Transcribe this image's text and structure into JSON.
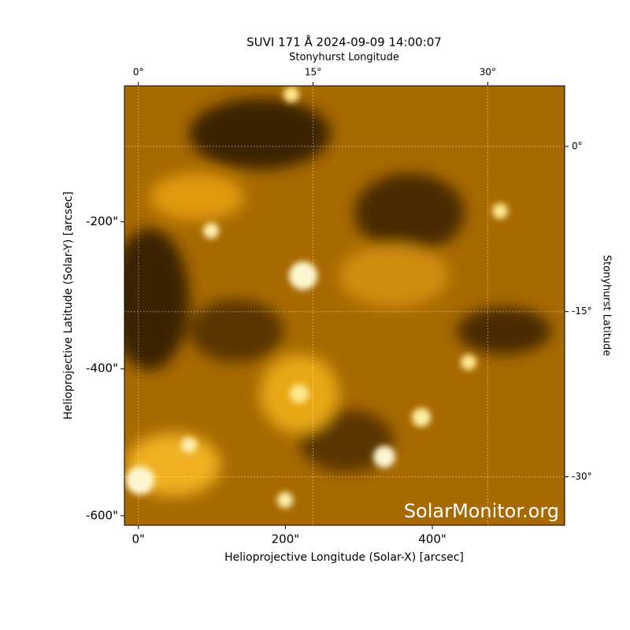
{
  "chart_data": {
    "type": "image",
    "title": "SUVI 171 Å 2024-09-09 14:00:07",
    "xlabel": "Helioprojective Longitude (Solar-X) [arcsec]",
    "ylabel": "Helioprojective Latitude (Solar-Y) [arcsec]",
    "x2label": "Stonyhurst Longitude",
    "y2label": "Stonyhurst Latitude",
    "watermark": "SolarMonitor.org",
    "xlim": [
      -19,
      580
    ],
    "ylim": [
      -613,
      -15
    ],
    "xticks": [
      {
        "value": 0,
        "label": "0\""
      },
      {
        "value": 200,
        "label": "200\""
      },
      {
        "value": 400,
        "label": "400\""
      }
    ],
    "yticks": [
      {
        "value": -200,
        "label": "-200\""
      },
      {
        "value": -400,
        "label": "-400\""
      },
      {
        "value": -600,
        "label": "-600\""
      }
    ],
    "x2lim": [
      -1.2,
      36.6
    ],
    "y2lim": [
      5.5,
      -34.4
    ],
    "x2ticks": [
      {
        "value": 0,
        "label": "0°"
      },
      {
        "value": 15,
        "label": "15°"
      },
      {
        "value": 30,
        "label": "30°"
      }
    ],
    "y2ticks": [
      {
        "value": 0,
        "label": "0°"
      },
      {
        "value": -15,
        "label": "-15°"
      },
      {
        "value": -30,
        "label": "-30°"
      }
    ],
    "grid": true
  }
}
